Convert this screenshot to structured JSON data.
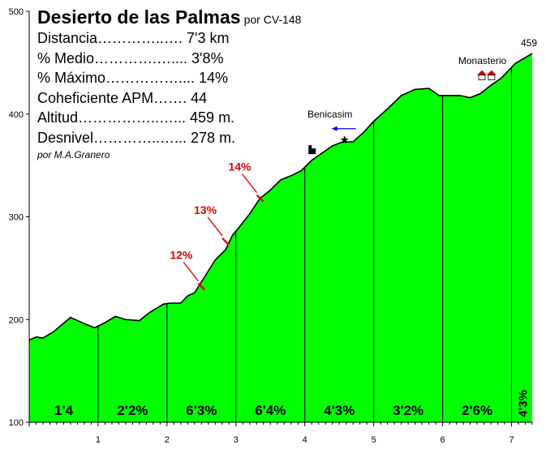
{
  "header": {
    "title": "Desierto de las Palmas",
    "subtitle": "por CV-148",
    "stats": [
      "Distancia…………..…. 7'3 km",
      "% Medio………….….... 3'8%",
      "% Máximo…………….... 14%",
      "Coheficiente APM……. 44",
      "Altitud……………..…... 459 m.",
      "Desnivel…………..…... 278 m."
    ],
    "author": "por M.A.Granero"
  },
  "chart_data": {
    "type": "area",
    "title": "Desierto de las Palmas",
    "xlabel": "",
    "ylabel": "",
    "xlim": [
      0,
      7.3
    ],
    "ylim": [
      100,
      500
    ],
    "x_ticks": [
      "1",
      "2",
      "3",
      "4",
      "5",
      "6",
      "7"
    ],
    "y_ticks": [
      "100",
      "200",
      "300",
      "400",
      "500"
    ],
    "grid": false,
    "series": [
      {
        "x": [
          0,
          0.1,
          0.2,
          0.35,
          0.6,
          0.8,
          0.95,
          1.1,
          1.25,
          1.4,
          1.6,
          1.75,
          1.95,
          2.05,
          2.2,
          2.3,
          2.4,
          2.55,
          2.7,
          2.85,
          2.95,
          3.05,
          3.2,
          3.35,
          3.5,
          3.65,
          3.8,
          3.95,
          4.1,
          4.25,
          4.4,
          4.55,
          4.7,
          4.85,
          5.0,
          5.2,
          5.4,
          5.6,
          5.8,
          5.95,
          6.1,
          6.25,
          6.4,
          6.55,
          6.7,
          6.85,
          7.05,
          7.3
        ],
        "y": [
          180,
          183,
          182,
          188,
          202,
          196,
          192,
          197,
          203,
          200,
          199,
          207,
          215,
          216,
          216,
          223,
          226,
          242,
          258,
          268,
          282,
          290,
          303,
          318,
          326,
          336,
          340,
          345,
          355,
          362,
          369,
          373,
          373,
          382,
          393,
          405,
          418,
          424,
          425,
          418,
          418,
          418,
          416,
          420,
          428,
          435,
          449,
          459
        ]
      }
    ],
    "segment_labels": [
      {
        "x_start": 0,
        "x_end": 1,
        "label": "1'4"
      },
      {
        "x_start": 1,
        "x_end": 2,
        "label": "2'2%"
      },
      {
        "x_start": 2,
        "x_end": 3,
        "label": "6'3%"
      },
      {
        "x_start": 3,
        "x_end": 4,
        "label": "6'4%"
      },
      {
        "x_start": 4,
        "x_end": 5,
        "label": "4'3%"
      },
      {
        "x_start": 5,
        "x_end": 6,
        "label": "3'2%"
      },
      {
        "x_start": 6,
        "x_end": 7,
        "label": "2'6%"
      },
      {
        "x_start": 7,
        "x_end": 7.3,
        "label": "4'3%"
      }
    ],
    "annotations": [
      {
        "text": "12%",
        "x": 2.5,
        "y": 232,
        "color": "#e00000"
      },
      {
        "text": "13%",
        "x": 2.85,
        "y": 276,
        "color": "#e00000"
      },
      {
        "text": "14%",
        "x": 3.35,
        "y": 318,
        "color": "#e00000"
      },
      {
        "text": "Benicasim",
        "x": 4.6,
        "y": 400,
        "color": "#000000"
      },
      {
        "text": "Monasterio",
        "x": 6.6,
        "y": 440,
        "color": "#000000"
      },
      {
        "text": "459",
        "x": 7.3,
        "y": 459,
        "color": "#000000"
      }
    ],
    "colors": {
      "fill": "#00ff00",
      "line": "#000000",
      "slope_marker": "#e00000",
      "arrow": "#0000ff"
    }
  }
}
